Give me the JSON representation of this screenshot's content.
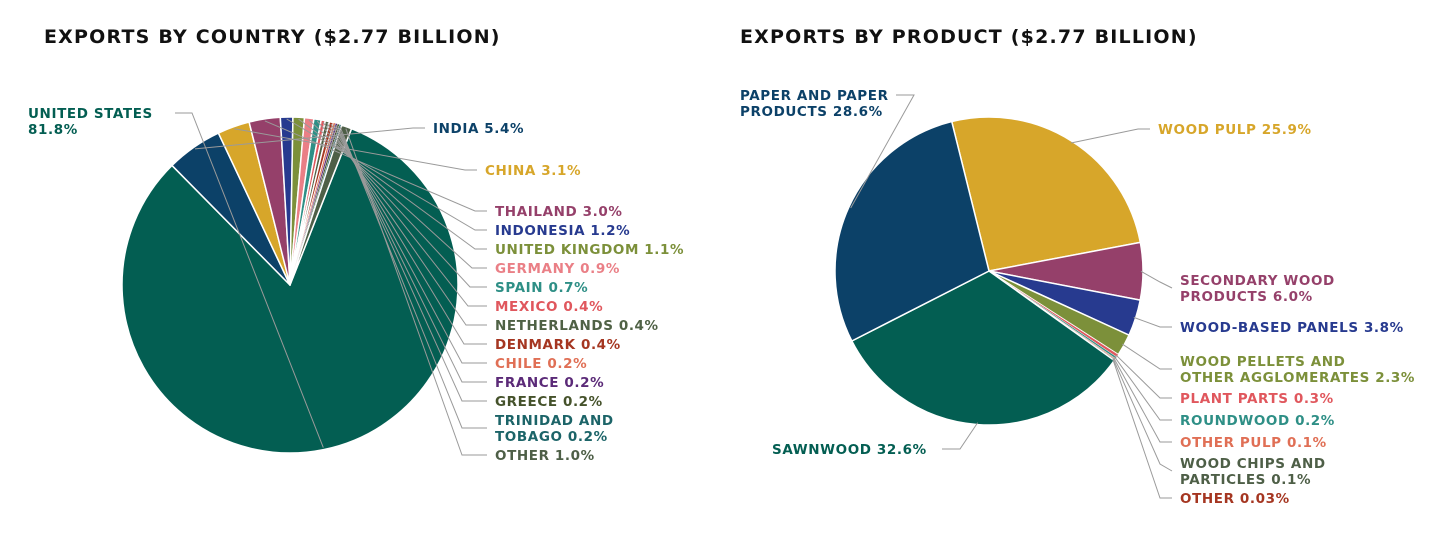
{
  "chart_data": [
    {
      "type": "pie",
      "title": "EXPORTS BY COUNTRY ($2.77 BILLION)",
      "slices": [
        {
          "label": "UNITED STATES",
          "value": 81.8,
          "value_label": "81.8%",
          "color": "#035e52"
        },
        {
          "label": "INDIA",
          "value": 5.4,
          "value_label": "5.4%",
          "color": "#0c4168"
        },
        {
          "label": "CHINA",
          "value": 3.1,
          "value_label": "3.1%",
          "color": "#d7a62a"
        },
        {
          "label": "THAILAND",
          "value": 3.0,
          "value_label": "3.0%",
          "color": "#95406a"
        },
        {
          "label": "INDONESIA",
          "value": 1.2,
          "value_label": "1.2%",
          "color": "#273a8f"
        },
        {
          "label": "UNITED KINGDOM",
          "value": 1.1,
          "value_label": "1.1%",
          "color": "#7c903a"
        },
        {
          "label": "GERMANY",
          "value": 0.9,
          "value_label": "0.9%",
          "color": "#ea7f86"
        },
        {
          "label": "SPAIN",
          "value": 0.7,
          "value_label": "0.7%",
          "color": "#2e8f86"
        },
        {
          "label": "MEXICO",
          "value": 0.4,
          "value_label": "0.4%",
          "color": "#e0575d"
        },
        {
          "label": "NETHERLANDS",
          "value": 0.4,
          "value_label": "0.4%",
          "color": "#4f6145"
        },
        {
          "label": "DENMARK",
          "value": 0.4,
          "value_label": "0.4%",
          "color": "#a53621"
        },
        {
          "label": "CHILE",
          "value": 0.2,
          "value_label": "0.2%",
          "color": "#e06f55"
        },
        {
          "label": "FRANCE",
          "value": 0.2,
          "value_label": "0.2%",
          "color": "#5b2a78"
        },
        {
          "label": "GREECE",
          "value": 0.2,
          "value_label": "0.2%",
          "color": "#45522b"
        },
        {
          "label": "TRINIDAD AND TOBAGO",
          "value": 0.2,
          "value_label": "0.2%",
          "color": "#1c6468"
        },
        {
          "label": "OTHER",
          "value": 1.0,
          "value_label": "1.0%",
          "color": "#4e5f47"
        }
      ]
    },
    {
      "type": "pie",
      "title": "EXPORTS BY PRODUCT ($2.77 BILLION)",
      "slices": [
        {
          "label": "WOOD PULP",
          "value": 25.9,
          "value_label": "25.9%",
          "color": "#d7a62a"
        },
        {
          "label": "SECONDARY WOOD PRODUCTS",
          "value": 6.0,
          "value_label": "6.0%",
          "color": "#95406a"
        },
        {
          "label": "WOOD-BASED PANELS",
          "value": 3.8,
          "value_label": "3.8%",
          "color": "#273a8f"
        },
        {
          "label": "WOOD PELLETS AND OTHER AGGLOMERATES",
          "value": 2.3,
          "value_label": "2.3%",
          "color": "#7c903a"
        },
        {
          "label": "PLANT PARTS",
          "value": 0.3,
          "value_label": "0.3%",
          "color": "#e0575d"
        },
        {
          "label": "ROUNDWOOD",
          "value": 0.2,
          "value_label": "0.2%",
          "color": "#2e8f86"
        },
        {
          "label": "OTHER PULP",
          "value": 0.1,
          "value_label": "0.1%",
          "color": "#e06f55"
        },
        {
          "label": "WOOD CHIPS AND PARTICLES",
          "value": 0.1,
          "value_label": "0.1%",
          "color": "#4e5f47"
        },
        {
          "label": "OTHER",
          "value": 0.03,
          "value_label": "0.03%",
          "color": "#a53621"
        },
        {
          "label": "SAWNWOOD",
          "value": 32.6,
          "value_label": "32.6%",
          "color": "#035e52"
        },
        {
          "label": "PAPER AND PAPER PRODUCTS",
          "value": 28.6,
          "value_label": "28.6%",
          "color": "#0c4168"
        }
      ]
    }
  ]
}
